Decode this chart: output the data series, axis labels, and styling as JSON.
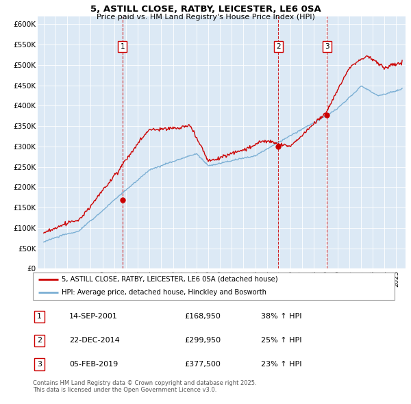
{
  "title": "5, ASTILL CLOSE, RATBY, LEICESTER, LE6 0SA",
  "subtitle": "Price paid vs. HM Land Registry's House Price Index (HPI)",
  "plot_bg_color": "#dce9f5",
  "ylim": [
    0,
    620000
  ],
  "yticks": [
    0,
    50000,
    100000,
    150000,
    200000,
    250000,
    300000,
    350000,
    400000,
    450000,
    500000,
    550000,
    600000
  ],
  "ytick_labels": [
    "£0",
    "£50K",
    "£100K",
    "£150K",
    "£200K",
    "£250K",
    "£300K",
    "£350K",
    "£400K",
    "£450K",
    "£500K",
    "£550K",
    "£600K"
  ],
  "sale_dates_year": [
    2001.71,
    2014.97,
    2019.09
  ],
  "sale_prices": [
    168950,
    299950,
    377500
  ],
  "sale_labels": [
    "1",
    "2",
    "3"
  ],
  "legend_line1": "5, ASTILL CLOSE, RATBY, LEICESTER, LE6 0SA (detached house)",
  "legend_line2": "HPI: Average price, detached house, Hinckley and Bosworth",
  "table_rows": [
    [
      "1",
      "14-SEP-2001",
      "£168,950",
      "38% ↑ HPI"
    ],
    [
      "2",
      "22-DEC-2014",
      "£299,950",
      "25% ↑ HPI"
    ],
    [
      "3",
      "05-FEB-2019",
      "£377,500",
      "23% ↑ HPI"
    ]
  ],
  "footer": "Contains HM Land Registry data © Crown copyright and database right 2025.\nThis data is licensed under the Open Government Licence v3.0.",
  "red_color": "#cc0000",
  "blue_color": "#7bafd4",
  "xlim_left": 1994.5,
  "xlim_right": 2025.8,
  "xtick_start": 1995,
  "xtick_end": 2025
}
